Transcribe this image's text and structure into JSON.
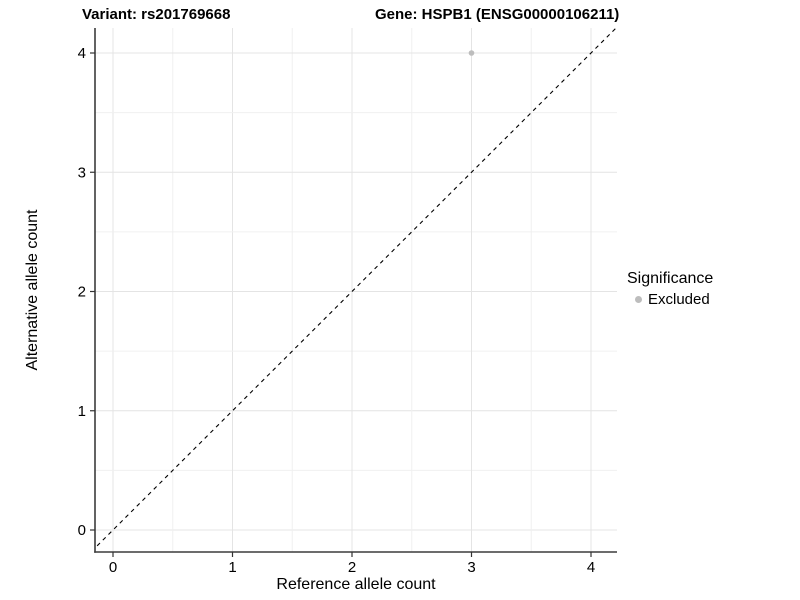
{
  "figure": {
    "title_left": "Variant: rs201769668",
    "title_right": "Gene: HSPB1 (ENSG00000106211)"
  },
  "chart_data": {
    "type": "scatter",
    "title": "Variant: rs201769668    Gene: HSPB1 (ENSG00000106211)",
    "xlabel": "Reference allele count",
    "ylabel": "Alternative allele count",
    "xlim": [
      -0.15,
      4.22
    ],
    "ylim": [
      -0.18,
      4.21
    ],
    "x_ticks": [
      0,
      1,
      2,
      3,
      4
    ],
    "y_ticks": [
      0,
      1,
      2,
      3,
      4
    ],
    "grid": true,
    "minor_grid_step": 0.5,
    "series": [
      {
        "name": "Excluded",
        "points": [
          {
            "x": 3,
            "y": 4
          }
        ],
        "color": "#bdbdbd"
      }
    ],
    "reference_line": {
      "type": "identity",
      "equation": "y = x",
      "style": "dashed",
      "color": "#000000"
    },
    "legend": {
      "title": "Significance",
      "position": "right",
      "entries": [
        {
          "label": "Excluded",
          "color": "#bdbdbd"
        }
      ]
    }
  },
  "colors": {
    "background": "#ffffff",
    "grid_major": "#e4e4e4",
    "grid_minor": "#f0f0f0",
    "axis_line": "#3c3c3c",
    "tick_mark": "#333333",
    "tick_label": "#000000",
    "point": "#bdbdbd"
  }
}
